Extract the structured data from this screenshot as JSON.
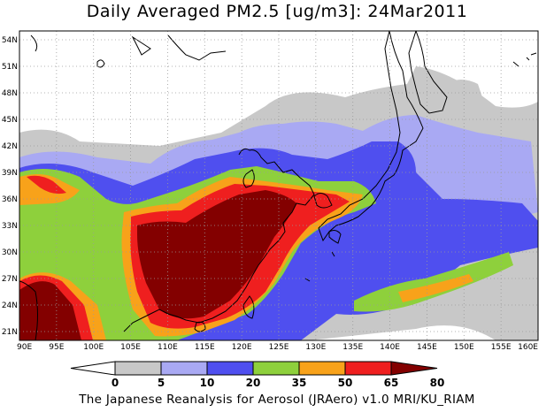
{
  "title": "Daily Averaged PM2.5 [ug/m3]: 24Mar2011",
  "credit": "The Japanese Reanalysis for Aerosol (JRAero) v1.0 MRI/KU_RIAM",
  "chart_data": {
    "type": "heatmap",
    "variable": "PM2.5",
    "units": "ug/m3",
    "date": "24Mar2011",
    "lon_range": [
      90,
      160
    ],
    "lat_range": [
      20,
      55
    ],
    "x_ticks": [
      "90E",
      "95E",
      "100E",
      "105E",
      "110E",
      "115E",
      "120E",
      "125E",
      "130E",
      "135E",
      "140E",
      "145E",
      "150E",
      "155E",
      "160E"
    ],
    "y_ticks": [
      "21N",
      "24N",
      "27N",
      "30N",
      "33N",
      "36N",
      "39N",
      "42N",
      "45N",
      "48N",
      "51N",
      "54N"
    ],
    "grid": true,
    "colorbar": {
      "levels": [
        "0",
        "5",
        "10",
        "20",
        "35",
        "50",
        "65",
        "80"
      ],
      "colors": [
        "#ffffff",
        "#c8c8c8",
        "#a9a9f3",
        "#4f4fef",
        "#8ed03c",
        "#f8a21a",
        "#ef1f1f",
        "#830000"
      ]
    }
  }
}
